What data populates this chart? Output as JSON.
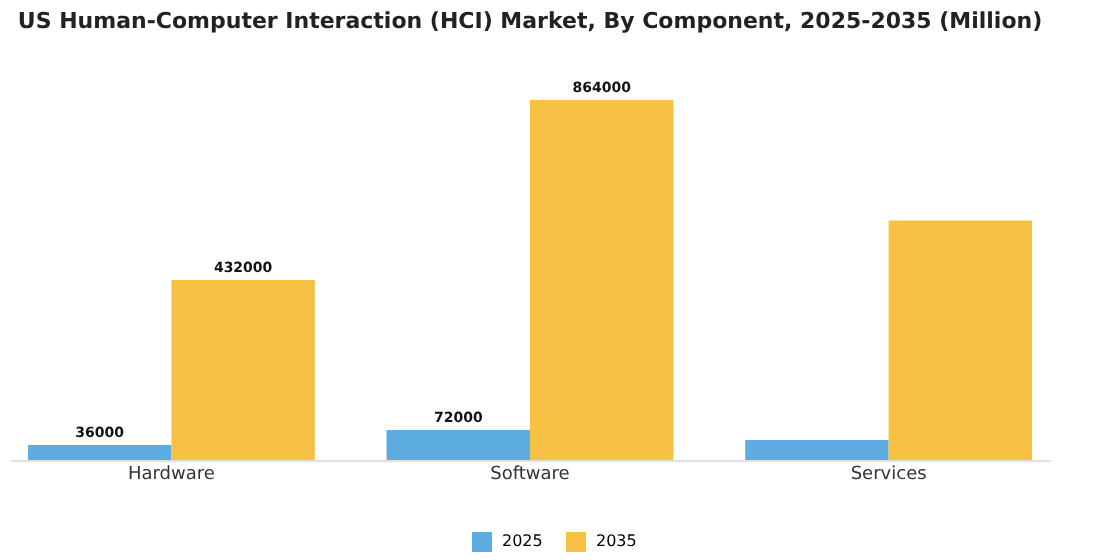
{
  "chart_data": {
    "type": "bar",
    "title": "US Human-Computer Interaction (HCI) Market, By Component, 2025-2035 (Million)",
    "categories": [
      "Hardware",
      "Software",
      "Services"
    ],
    "series": [
      {
        "name": "2025",
        "color": "#5dade2",
        "values": [
          36000,
          72000,
          48000
        ],
        "value_labels": [
          "36000",
          "72000",
          null
        ]
      },
      {
        "name": "2035",
        "color": "#f7c244",
        "values": [
          432000,
          864000,
          575000
        ],
        "value_labels": [
          "432000",
          "864000",
          null
        ]
      }
    ],
    "legend": "bottom",
    "grid": false
  }
}
